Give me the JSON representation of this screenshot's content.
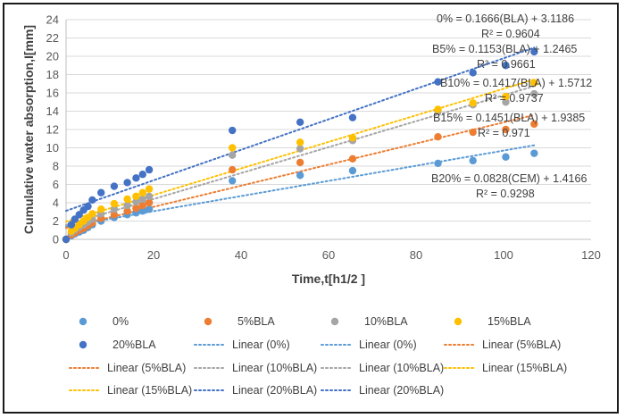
{
  "chart_data": {
    "type": "scatter",
    "xlabel": "Time,t[h1/2 ]",
    "ylabel": "Cumulative water absorption,I[mm]",
    "xlim": [
      0,
      120
    ],
    "ylim": [
      0,
      24
    ],
    "x_ticks": [
      "0",
      "20",
      "40",
      "60",
      "80",
      "100",
      "120"
    ],
    "y_ticks": [
      "0",
      "2",
      "4",
      "6",
      "8",
      "10",
      "12",
      "14",
      "16",
      "18",
      "20",
      "22",
      "24"
    ],
    "grid": "horizontal",
    "legend_position": "bottom",
    "series": [
      {
        "name": "0%",
        "color": "#5b9bd5",
        "points": [
          [
            0,
            0
          ],
          [
            1.2,
            0.4
          ],
          [
            2,
            0.6
          ],
          [
            3,
            0.8
          ],
          [
            4,
            1.0
          ],
          [
            5,
            1.3
          ],
          [
            6,
            1.6
          ],
          [
            8,
            2.0
          ],
          [
            11,
            2.4
          ],
          [
            14,
            2.7
          ],
          [
            16,
            2.9
          ],
          [
            17.5,
            3.1
          ],
          [
            19,
            3.3
          ],
          [
            38,
            6.4
          ],
          [
            53.5,
            7.0
          ],
          [
            65.5,
            7.5
          ],
          [
            85,
            8.3
          ],
          [
            93,
            8.6
          ],
          [
            100.5,
            9.0
          ],
          [
            107,
            9.4
          ]
        ],
        "trend_label": "Linear (0%)",
        "trend_equation": "B20% = 0.0828(CEM) + 1.4166",
        "trend_r2": "R² = 0.9298"
      },
      {
        "name": "5%BLA",
        "color": "#ed7d31",
        "points": [
          [
            0,
            0
          ],
          [
            1.2,
            0.5
          ],
          [
            2,
            0.7
          ],
          [
            3,
            1.0
          ],
          [
            4,
            1.2
          ],
          [
            5,
            1.5
          ],
          [
            6,
            1.8
          ],
          [
            8,
            2.3
          ],
          [
            11,
            2.7
          ],
          [
            14,
            3.1
          ],
          [
            16,
            3.4
          ],
          [
            17.5,
            3.7
          ],
          [
            19,
            4.0
          ],
          [
            38,
            7.6
          ],
          [
            53.5,
            8.4
          ],
          [
            65.5,
            8.8
          ],
          [
            85,
            11.2
          ],
          [
            93,
            11.7
          ],
          [
            100.5,
            12.0
          ],
          [
            107,
            12.6
          ]
        ],
        "trend_label": "Linear (5%BLA)",
        "trend_equation": "B5% = 0.1153(BLA) + 1.2465",
        "trend_r2": "R² = 0.9661"
      },
      {
        "name": "10%BLA",
        "color": "#a5a5a5",
        "points": [
          [
            0,
            0
          ],
          [
            1.2,
            0.7
          ],
          [
            2,
            1.0
          ],
          [
            3,
            1.3
          ],
          [
            4,
            1.6
          ],
          [
            5,
            1.9
          ],
          [
            6,
            2.2
          ],
          [
            8,
            2.8
          ],
          [
            11,
            3.3
          ],
          [
            14,
            3.7
          ],
          [
            16,
            4.1
          ],
          [
            17.5,
            4.4
          ],
          [
            19,
            4.7
          ],
          [
            38,
            9.2
          ],
          [
            53.5,
            9.9
          ],
          [
            65.5,
            10.8
          ],
          [
            85,
            14.0
          ],
          [
            93,
            14.7
          ],
          [
            100.5,
            15.0
          ],
          [
            107,
            15.9
          ]
        ],
        "trend_label": "Linear (10%BLA)",
        "trend_equation": "B10% = 0.1417(BLA) + 1.5712",
        "trend_r2": "R² = 0.9737"
      },
      {
        "name": "15%BLA",
        "color": "#ffc000",
        "points": [
          [
            0,
            0
          ],
          [
            1.2,
            0.9
          ],
          [
            2,
            1.2
          ],
          [
            3,
            1.6
          ],
          [
            4,
            2.0
          ],
          [
            5,
            2.4
          ],
          [
            6,
            2.8
          ],
          [
            8,
            3.3
          ],
          [
            11,
            3.9
          ],
          [
            14,
            4.4
          ],
          [
            16,
            4.7
          ],
          [
            17.5,
            5.1
          ],
          [
            19,
            5.5
          ],
          [
            38,
            10.0
          ],
          [
            53.5,
            10.6
          ],
          [
            65.5,
            11.1
          ],
          [
            85,
            14.2
          ],
          [
            93,
            14.9
          ],
          [
            100.5,
            15.6
          ],
          [
            107,
            17.1
          ]
        ],
        "trend_label": "Linear (15%BLA)",
        "trend_equation": "B15% = 0.1451(BLA) + 1.9385",
        "trend_r2": "R² = 0.971"
      },
      {
        "name": "20%BLA",
        "color": "#4472c4",
        "points": [
          [
            0,
            0
          ],
          [
            1.2,
            1.6
          ],
          [
            2,
            2.2
          ],
          [
            3,
            2.7
          ],
          [
            4,
            3.2
          ],
          [
            5,
            3.6
          ],
          [
            6,
            4.3
          ],
          [
            8,
            5.1
          ],
          [
            11,
            5.8
          ],
          [
            14,
            6.2
          ],
          [
            16,
            6.7
          ],
          [
            17.5,
            7.1
          ],
          [
            19,
            7.6
          ],
          [
            38,
            11.9
          ],
          [
            53.5,
            12.8
          ],
          [
            65.5,
            13.3
          ],
          [
            85,
            17.2
          ],
          [
            93,
            18.2
          ],
          [
            100.5,
            19.0
          ],
          [
            107,
            20.5
          ]
        ],
        "trend_label": "Linear (20%BLA)",
        "trend_equation": "0% = 0.1666(BLA) + 3.1186",
        "trend_r2": "R² = 0.9604"
      }
    ],
    "trendlines": [
      {
        "series": 0,
        "slope": 0.0828,
        "intercept": 1.4166,
        "color": "#5b9bd5"
      },
      {
        "series": 1,
        "slope": 0.1153,
        "intercept": 1.2465,
        "color": "#ed7d31"
      },
      {
        "series": 2,
        "slope": 0.1417,
        "intercept": 1.5712,
        "color": "#a5a5a5"
      },
      {
        "series": 3,
        "slope": 0.1451,
        "intercept": 1.9385,
        "color": "#ffc000"
      },
      {
        "series": 4,
        "slope": 0.1666,
        "intercept": 3.1186,
        "color": "#4472c4"
      }
    ],
    "legend": [
      {
        "label": "0%",
        "kind": "marker",
        "color": "#5b9bd5"
      },
      {
        "label": "5%BLA",
        "kind": "marker",
        "color": "#ed7d31"
      },
      {
        "label": "10%BLA",
        "kind": "marker",
        "color": "#a5a5a5"
      },
      {
        "label": "15%BLA",
        "kind": "marker",
        "color": "#ffc000"
      },
      {
        "label": "20%BLA",
        "kind": "marker",
        "color": "#4472c4"
      },
      {
        "label": "Linear (0%)",
        "kind": "line",
        "color": "#5b9bd5"
      },
      {
        "label": "Linear (0%)",
        "kind": "line",
        "color": "#5b9bd5"
      },
      {
        "label": "Linear (5%BLA)",
        "kind": "line",
        "color": "#ed7d31"
      },
      {
        "label": "Linear (5%BLA)",
        "kind": "line",
        "color": "#ed7d31"
      },
      {
        "label": "Linear (10%BLA)",
        "kind": "line",
        "color": "#a5a5a5"
      },
      {
        "label": "Linear (10%BLA)",
        "kind": "line",
        "color": "#a5a5a5"
      },
      {
        "label": "Linear (15%BLA)",
        "kind": "line",
        "color": "#ffc000"
      },
      {
        "label": "Linear (15%BLA)",
        "kind": "line",
        "color": "#ffc000"
      },
      {
        "label": "Linear (20%BLA)",
        "kind": "line",
        "color": "#4472c4"
      },
      {
        "label": "Linear (20%BLA)",
        "kind": "line",
        "color": "#4472c4"
      }
    ]
  }
}
